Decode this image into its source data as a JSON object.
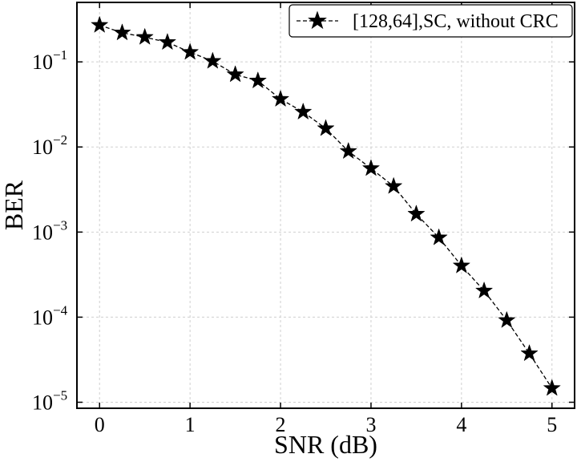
{
  "chart_data": {
    "type": "line",
    "title": "",
    "xlabel": "SNR (dB)",
    "ylabel": "BER",
    "xlim": [
      -0.25,
      5.25
    ],
    "ylim": [
      8.5e-06,
      0.5
    ],
    "yscale": "log",
    "grid": true,
    "legend_position": "top-right",
    "x_ticks": [
      {
        "value": 0,
        "label": "0"
      },
      {
        "value": 1,
        "label": "1"
      },
      {
        "value": 2,
        "label": "2"
      },
      {
        "value": 3,
        "label": "3"
      },
      {
        "value": 4,
        "label": "4"
      },
      {
        "value": 5,
        "label": "5"
      }
    ],
    "y_ticks": [
      {
        "value": 0.1,
        "base": "10",
        "exp": "−1"
      },
      {
        "value": 0.01,
        "base": "10",
        "exp": "−2"
      },
      {
        "value": 0.001,
        "base": "10",
        "exp": "−3"
      },
      {
        "value": 0.0001,
        "base": "10",
        "exp": "−4"
      },
      {
        "value": 1e-05,
        "base": "10",
        "exp": "−5"
      }
    ],
    "series": [
      {
        "name": "[128,64],SC, without CRC",
        "color": "#000000",
        "line_style": "dashed",
        "marker": "star",
        "x": [
          0,
          0.25,
          0.5,
          0.75,
          1,
          1.25,
          1.5,
          1.75,
          2,
          2.25,
          2.5,
          2.75,
          3,
          3.25,
          3.5,
          3.75,
          4,
          4.25,
          4.5,
          4.75,
          5
        ],
        "values": [
          0.27,
          0.22,
          0.195,
          0.17,
          0.13,
          0.102,
          0.071,
          0.06,
          0.0365,
          0.0258,
          0.0165,
          0.0089,
          0.0056,
          0.00345,
          0.00163,
          0.00086,
          0.000402,
          0.000204,
          9.17e-05,
          3.74e-05,
          1.46e-05
        ]
      }
    ]
  }
}
